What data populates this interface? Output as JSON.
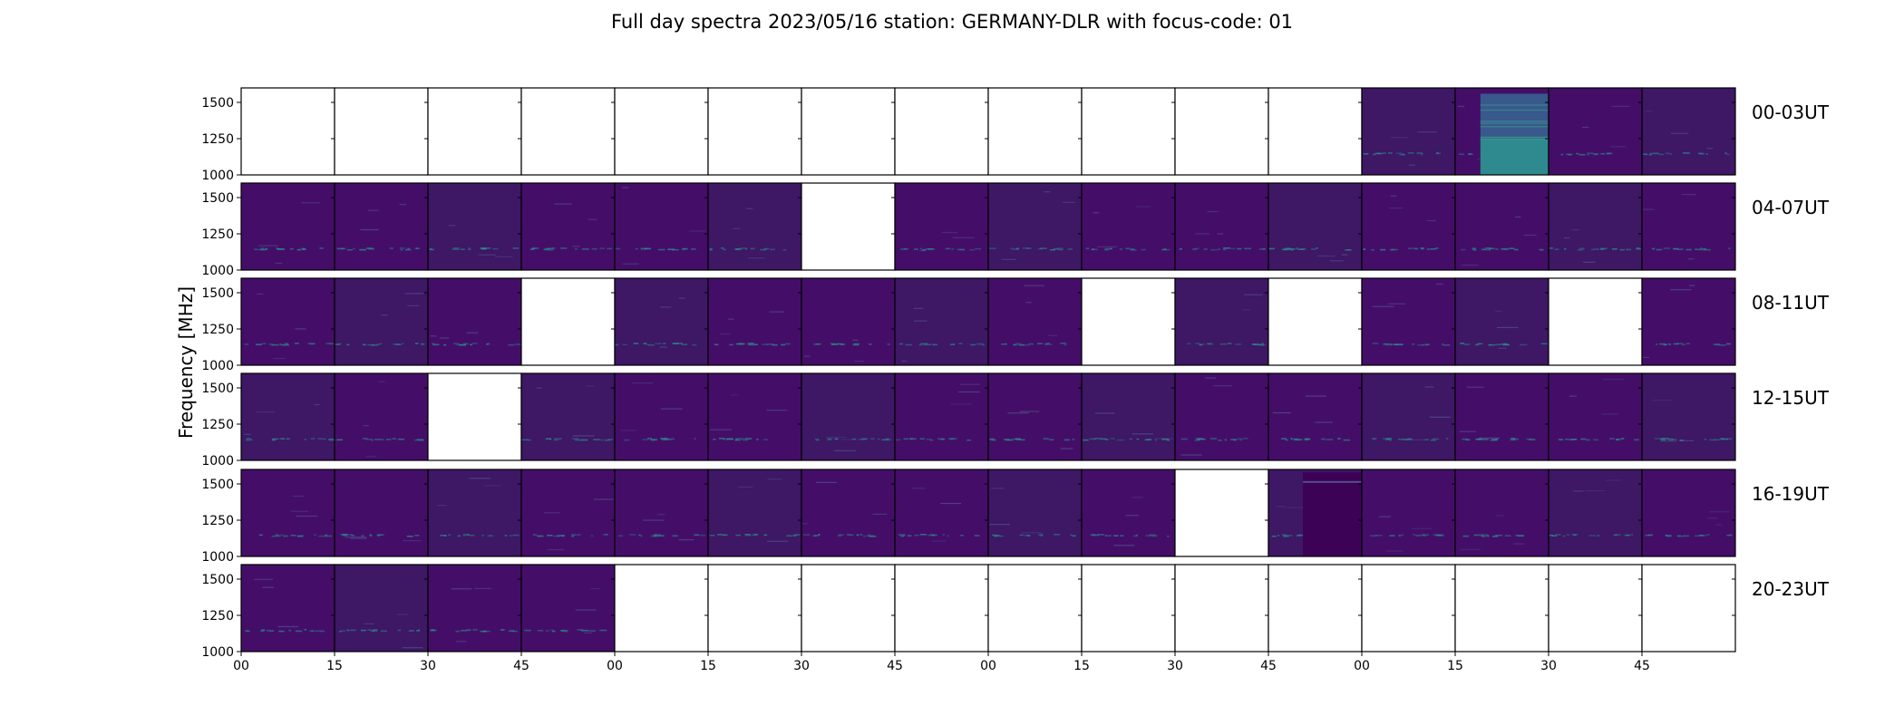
{
  "chart_data": {
    "type": "heatmap",
    "title": "Full day spectra 2023/05/16 station: GERMANY-DLR with focus-code: 01",
    "ylabel": "Frequency [MHz]",
    "xlabel": "",
    "ylim": [
      1000,
      1600
    ],
    "yticks": [
      "1000",
      "1250",
      "1500"
    ],
    "xticks": [
      "00",
      "15",
      "30",
      "45",
      "00",
      "15",
      "30",
      "45",
      "00",
      "15",
      "30",
      "45",
      "00",
      "15",
      "30",
      "45"
    ],
    "rows": [
      {
        "label": "00-03UT",
        "cells": [
          0,
          0,
          0,
          0,
          0,
          0,
          0,
          0,
          0,
          0,
          0,
          0,
          1,
          3,
          1,
          1
        ]
      },
      {
        "label": "04-07UT",
        "cells": [
          1,
          1,
          1,
          1,
          1,
          1,
          0,
          1,
          1,
          1,
          1,
          1,
          1,
          1,
          1,
          1
        ]
      },
      {
        "label": "08-11UT",
        "cells": [
          1,
          1,
          1,
          0,
          1,
          1,
          1,
          1,
          1,
          0,
          1,
          0,
          1,
          1,
          0,
          1
        ]
      },
      {
        "label": "12-15UT",
        "cells": [
          1,
          1,
          0,
          1,
          1,
          1,
          1,
          1,
          1,
          1,
          1,
          1,
          1,
          1,
          1,
          1
        ]
      },
      {
        "label": "16-19UT",
        "cells": [
          1,
          1,
          1,
          1,
          1,
          1,
          1,
          1,
          1,
          1,
          0,
          2,
          1,
          1,
          1,
          1
        ]
      },
      {
        "label": "20-23UT",
        "cells": [
          1,
          1,
          1,
          1,
          0,
          0,
          0,
          0,
          0,
          0,
          0,
          0,
          0,
          0,
          0,
          0
        ]
      }
    ],
    "cell_states": {
      "0": "no data",
      "1": "spectrum",
      "2": "spectrum with dark band",
      "3": "bright spectrum"
    },
    "colors": {
      "background": "#440e68",
      "background_alt": "#3e1765",
      "interference": "#2a8f8e",
      "bright_low": "#2e8a8e",
      "bright_high": "#39588c",
      "dark_band": "#3b0255",
      "frame": "#000000"
    },
    "grid": false,
    "legend": "none"
  }
}
